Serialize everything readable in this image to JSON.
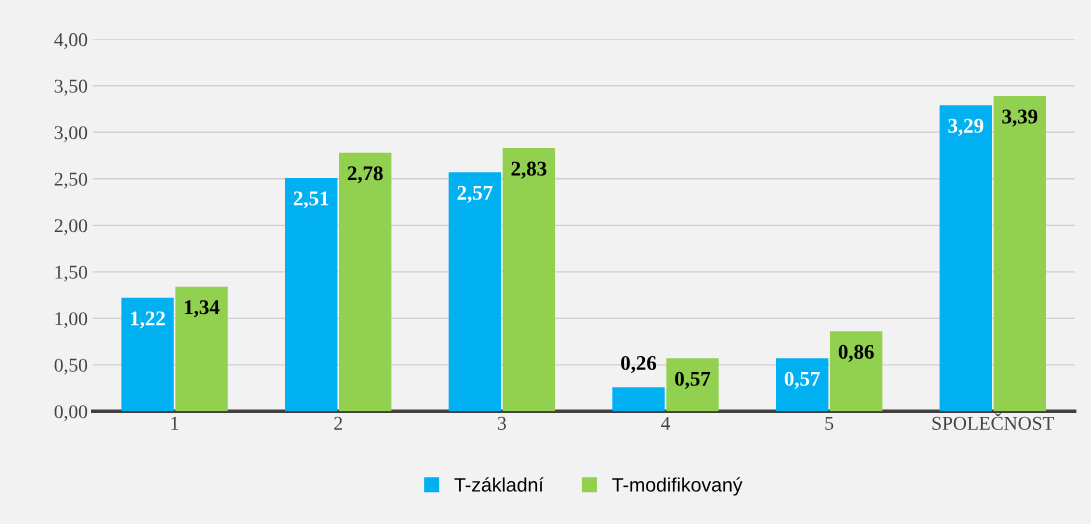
{
  "chart_data": {
    "type": "bar",
    "categories": [
      "1",
      "2",
      "3",
      "4",
      "5",
      "SPOLEČNOST"
    ],
    "series": [
      {
        "name": "T-základní",
        "color": "#00b0f0",
        "values": [
          1.22,
          2.51,
          2.57,
          0.26,
          0.57,
          3.29
        ],
        "value_labels": [
          "1,22",
          "2,51",
          "2,57",
          "0,26",
          "0,57",
          "3,29"
        ]
      },
      {
        "name": "T-modifikovaný",
        "color": "#92d050",
        "values": [
          1.34,
          2.78,
          2.83,
          0.57,
          0.86,
          3.39
        ],
        "value_labels": [
          "1,34",
          "2,78",
          "2,83",
          "0,57",
          "0,86",
          "3,39"
        ]
      }
    ],
    "ylim": [
      0,
      4
    ],
    "yticks": [
      {
        "value": 0,
        "label": "0,00"
      },
      {
        "value": 0.5,
        "label": "0,50"
      },
      {
        "value": 1,
        "label": "1,00"
      },
      {
        "value": 1.5,
        "label": "1,50"
      },
      {
        "value": 2,
        "label": "2,00"
      },
      {
        "value": 2.5,
        "label": "2,50"
      },
      {
        "value": 3,
        "label": "3,00"
      },
      {
        "value": 3.5,
        "label": "3,50"
      },
      {
        "value": 4,
        "label": "4,00"
      }
    ],
    "grid": "y",
    "legend": "bottom"
  }
}
